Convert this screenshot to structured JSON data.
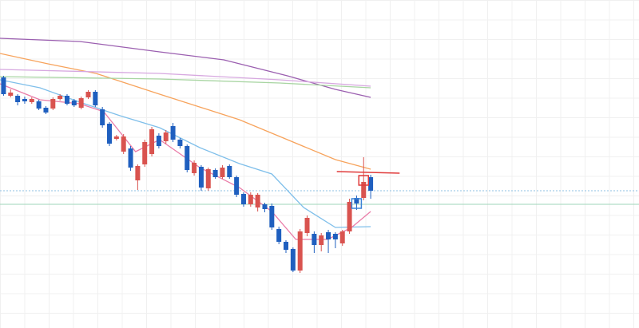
{
  "chart_data": {
    "type": "candlestick",
    "grid": true,
    "xlim": [
      -0.5,
      90
    ],
    "ylim": [
      0,
      411
    ],
    "up_color": "#d9534f",
    "down_color": "#1f5fbf",
    "categories": [
      null,
      null,
      null,
      null,
      null,
      null,
      null,
      null,
      null,
      null,
      null,
      null,
      null,
      null,
      null,
      null,
      null,
      null,
      null,
      null,
      null,
      null,
      null,
      null,
      null,
      null,
      null,
      null,
      null,
      null,
      null,
      null,
      null,
      null,
      null,
      null,
      null,
      null,
      null,
      null,
      null,
      null,
      null,
      null,
      null,
      null,
      null,
      null,
      null,
      null,
      null,
      null,
      null
    ],
    "open": [
      314,
      291,
      291,
      287,
      283,
      284,
      276,
      275,
      287,
      291,
      285,
      276,
      289,
      296,
      274,
      256,
      237,
      221,
      225,
      185,
      205,
      218,
      241,
      234,
      253,
      236,
      228,
      194,
      202,
      175,
      198,
      189,
      203,
      189,
      168,
      155,
      151,
      155,
      153,
      124,
      108,
      99,
      72,
      119,
      118,
      104,
      120,
      118,
      106,
      121,
      163,
      163,
      189
    ],
    "high": [
      316,
      299,
      293,
      290,
      289,
      286,
      278,
      289,
      293,
      293,
      287,
      290,
      298,
      298,
      277,
      258,
      242,
      243,
      228,
      205,
      236,
      252,
      244,
      248,
      257,
      238,
      230,
      210,
      204,
      201,
      200,
      204,
      205,
      191,
      170,
      170,
      169,
      157,
      156,
      127,
      110,
      101,
      124,
      141,
      121,
      119,
      123,
      120,
      123,
      162,
      166,
      214,
      192
    ],
    "low": [
      291,
      289,
      279,
      281,
      281,
      273,
      268,
      273,
      285,
      279,
      277,
      274,
      287,
      277,
      251,
      228,
      235,
      218,
      197,
      173,
      202,
      215,
      225,
      231,
      233,
      225,
      195,
      191,
      172,
      172,
      187,
      187,
      187,
      164,
      152,
      152,
      146,
      145,
      123,
      105,
      94,
      70,
      69,
      115,
      94,
      96,
      94,
      100,
      103,
      118,
      148,
      160,
      162
    ],
    "close": [
      293,
      295,
      283,
      284,
      287,
      275,
      270,
      287,
      291,
      281,
      279,
      288,
      296,
      279,
      254,
      231,
      240,
      240,
      201,
      203,
      233,
      249,
      228,
      245,
      236,
      228,
      198,
      207,
      176,
      199,
      189,
      201,
      189,
      167,
      155,
      167,
      167,
      149,
      126,
      108,
      98,
      72,
      121,
      138,
      104,
      116,
      111,
      111,
      121,
      158,
      156,
      183,
      172
    ],
    "lines": [
      {
        "color": "#9b5fb0",
        "x": [
          -0.5,
          10.8,
          22.1,
          31.2,
          40.2,
          47,
          52
        ],
        "values": [
          363,
          359,
          346,
          336,
          316,
          299,
          289
        ]
      },
      {
        "color": "#f7a35c",
        "x": [
          -0.5,
          6.3,
          13.1,
          22.1,
          33.4,
          40.2,
          47,
          52
        ],
        "values": [
          344,
          331,
          319,
          293,
          261,
          236,
          211,
          199
        ]
      },
      {
        "color": "#d7a8e0",
        "x": [
          -0.5,
          22.1,
          39.1,
          52
        ],
        "values": [
          324,
          319,
          311,
          303
        ]
      },
      {
        "color": "#a8d5a2",
        "x": [
          -0.5,
          22.1,
          39.1,
          52
        ],
        "values": [
          315,
          312,
          307,
          301
        ]
      },
      {
        "color": "#7fbfea",
        "x": [
          -0.5,
          5.16,
          10.8,
          16.5,
          22.1,
          27.8,
          33.4,
          38,
          42.5,
          47,
          52
        ],
        "values": [
          311,
          301,
          283,
          266,
          251,
          226,
          206,
          193,
          151,
          126,
          127
        ]
      },
      {
        "color": "#ea7ca8",
        "x": [
          -0.5,
          5.16,
          10.8,
          14.2,
          18.7,
          22.1,
          27.8,
          33.4,
          38,
          41.4,
          45.9,
          49.3,
          52
        ],
        "values": [
          306,
          286,
          281,
          271,
          221,
          236,
          201,
          176,
          146,
          111,
          111,
          126,
          146
        ]
      }
    ],
    "hlines": [
      {
        "value": 172,
        "color": "#8fc1e3"
      },
      {
        "value": 155,
        "color": "#9fd6b8"
      }
    ],
    "trend_lines": [
      {
        "color": "#e03a3a",
        "x": [
          47.2,
          56.1
        ],
        "values": [
          196,
          194
        ]
      }
    ],
    "markers": [
      {
        "x": 50,
        "value": 156,
        "color": "#3b82d6"
      },
      {
        "x": 51,
        "value": 185,
        "color": "#e03a3a"
      }
    ]
  }
}
